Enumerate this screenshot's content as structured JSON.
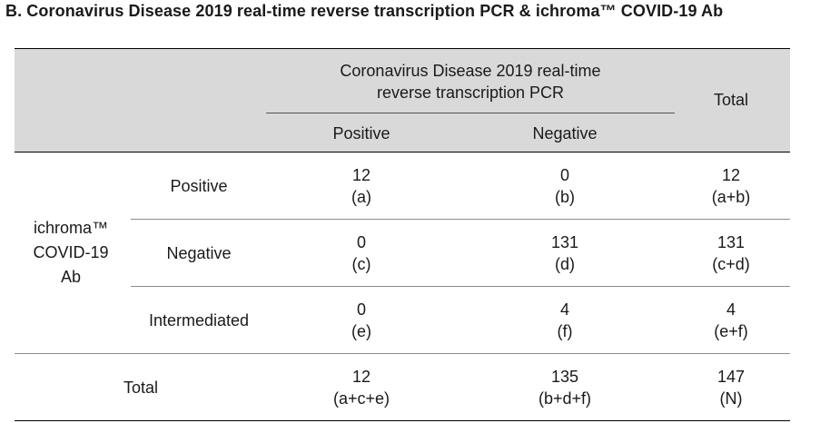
{
  "title": "B. Coronavirus Disease 2019 real-time reverse transcription PCR & ichroma™ COVID-19 Ab",
  "header": {
    "group_label_line1": "Coronavirus Disease 2019 real-time",
    "group_label_line2": "reverse transcription PCR",
    "col_positive": "Positive",
    "col_negative": "Negative",
    "col_total": "Total"
  },
  "row_group": {
    "line1": "ichroma™",
    "line2": "COVID-19",
    "line3": "Ab"
  },
  "rows": [
    {
      "label": "Positive",
      "cells": [
        {
          "value": "12",
          "code": "(a)"
        },
        {
          "value": "0",
          "code": "(b)"
        },
        {
          "value": "12",
          "code": "(a+b)"
        }
      ]
    },
    {
      "label": "Negative",
      "cells": [
        {
          "value": "0",
          "code": "(c)"
        },
        {
          "value": "131",
          "code": "(d)"
        },
        {
          "value": "131",
          "code": "(c+d)"
        }
      ]
    },
    {
      "label": "Intermediated",
      "cells": [
        {
          "value": "0",
          "code": "(e)"
        },
        {
          "value": "4",
          "code": "(f)"
        },
        {
          "value": "4",
          "code": "(e+f)"
        }
      ]
    }
  ],
  "total_row": {
    "label": "Total",
    "cells": [
      {
        "value": "12",
        "code": "(a+c+e)"
      },
      {
        "value": "135",
        "code": "(b+d+f)"
      },
      {
        "value": "147",
        "code": "(N)"
      }
    ]
  }
}
